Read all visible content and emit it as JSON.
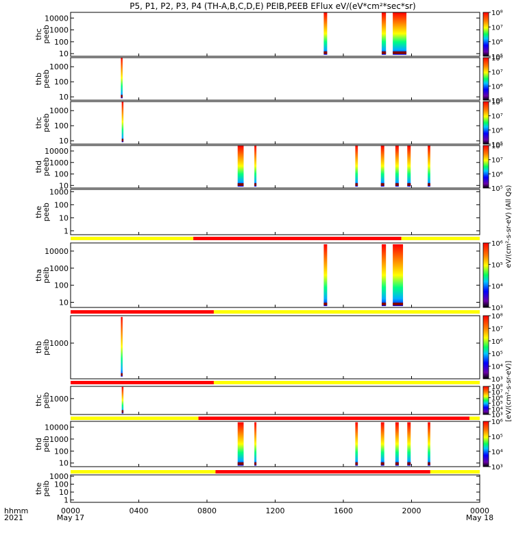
{
  "title": "P5, P1, P2, P3, P4 (TH-A,B,C,D,E) PEIB,PEEB EFlux eV/(eV*cm²*sec*sr)",
  "footer": {
    "time_label": "hhmm",
    "year_label": "2021",
    "x_ticks": [
      "0000",
      "0400",
      "0800",
      "1200",
      "1600",
      "2000",
      "0000"
    ],
    "x_tick_hours": [
      0,
      4,
      8,
      12,
      16,
      20,
      24
    ],
    "date_start": "May 17",
    "date_end": "May 18"
  },
  "colorbar_units": {
    "eeb": "eV/(cm²-s-sr-eV)  (All Qs)",
    "eib": "[eV/(cm²-s-sr-eV)]"
  },
  "quality_bar_colors": {
    "good": "#ffff00",
    "bad": "#ff0000"
  },
  "chart_data": [
    {
      "type": "heatmap",
      "probe": "thc",
      "product": "peeb",
      "ylabel": "thc\npeeb",
      "yscale": "log",
      "ylim": [
        6,
        30000
      ],
      "y_ticks": [
        [
          "10",
          10
        ],
        [
          "100",
          100
        ],
        [
          "1000",
          1000
        ],
        [
          "10000",
          10000
        ]
      ],
      "colorbar": {
        "labels": [
          "10⁵",
          "10⁶",
          "10⁷",
          "10⁸"
        ],
        "range": [
          4,
          8
        ]
      },
      "x_hours": [
        0,
        24
      ],
      "bursts": [
        {
          "start": 14.85,
          "end": 15.05,
          "ymin": 8,
          "ymax": 30000
        },
        {
          "start": 18.25,
          "end": 18.5,
          "ymin": 8,
          "ymax": 30000
        },
        {
          "start": 18.9,
          "end": 19.7,
          "ymin": 8,
          "ymax": 30000
        }
      ],
      "quality_bar": null
    },
    {
      "type": "heatmap",
      "probe": "thb",
      "product": "peeb",
      "ylabel": "thb\npeeb",
      "yscale": "log",
      "ylim": [
        6,
        4000
      ],
      "y_ticks": [
        [
          "10",
          10
        ],
        [
          "100",
          100
        ],
        [
          "1000",
          1000
        ]
      ],
      "colorbar": {
        "labels": [
          "10⁵",
          "10⁶",
          "10⁷",
          "10⁸"
        ],
        "range": [
          4,
          8
        ]
      },
      "bursts": [
        {
          "start": 2.95,
          "end": 3.05,
          "ymin": 8,
          "ymax": 4000
        }
      ],
      "quality_bar": null
    },
    {
      "type": "heatmap",
      "probe": "thc",
      "product": "peeb",
      "ylabel": "thc\npeeb",
      "yscale": "log",
      "ylim": [
        6,
        4000
      ],
      "y_ticks": [
        [
          "10",
          10
        ],
        [
          "100",
          100
        ],
        [
          "1000",
          1000
        ]
      ],
      "colorbar": {
        "labels": [
          "10⁵",
          "10⁶",
          "10⁷",
          "10⁸"
        ],
        "range": [
          4,
          8
        ]
      },
      "bursts": [
        {
          "start": 3.0,
          "end": 3.1,
          "ymin": 8,
          "ymax": 4000
        }
      ],
      "quality_bar": null
    },
    {
      "type": "heatmap",
      "probe": "thd",
      "product": "peeb",
      "ylabel": "thd\npeeb",
      "yscale": "log",
      "ylim": [
        6,
        30000
      ],
      "y_ticks": [
        [
          "10",
          10
        ],
        [
          "100",
          100
        ],
        [
          "1000",
          1000
        ],
        [
          "10000",
          10000
        ]
      ],
      "colorbar": {
        "labels": [
          "10⁵",
          "10⁶",
          "10⁷",
          "10⁸"
        ],
        "range": [
          4,
          8
        ]
      },
      "bursts": [
        {
          "start": 9.8,
          "end": 10.15,
          "ymin": 8,
          "ymax": 30000
        },
        {
          "start": 10.78,
          "end": 10.9,
          "ymin": 8,
          "ymax": 30000
        },
        {
          "start": 16.7,
          "end": 16.85,
          "ymin": 8,
          "ymax": 30000
        },
        {
          "start": 18.2,
          "end": 18.4,
          "ymin": 8,
          "ymax": 30000
        },
        {
          "start": 19.05,
          "end": 19.25,
          "ymin": 8,
          "ymax": 30000
        },
        {
          "start": 19.75,
          "end": 19.95,
          "ymin": 8,
          "ymax": 30000
        },
        {
          "start": 20.95,
          "end": 21.1,
          "ymin": 8,
          "ymax": 30000
        }
      ],
      "quality_bar": null
    },
    {
      "type": "heatmap",
      "probe": "the",
      "product": "peeb",
      "ylabel": "the\npeeb",
      "yscale": "log",
      "ylim": [
        0.5,
        1500
      ],
      "y_ticks": [
        [
          "1",
          1
        ],
        [
          "10",
          10
        ],
        [
          "100",
          100
        ],
        [
          "1000",
          1000
        ]
      ],
      "colorbar": null,
      "bursts": [],
      "quality_bar": null
    },
    {
      "type": "heatmap",
      "probe": "tha",
      "product": "peib",
      "ylabel": "tha\npeib",
      "yscale": "log",
      "ylim": [
        5,
        30000
      ],
      "y_ticks": [
        [
          "10",
          10
        ],
        [
          "100",
          100
        ],
        [
          "1000",
          1000
        ],
        [
          "10000",
          10000
        ]
      ],
      "colorbar": {
        "labels": [
          "10³",
          "10⁴",
          "10⁵",
          "10⁶"
        ],
        "range": [
          3,
          6
        ]
      },
      "bursts": [
        {
          "start": 14.85,
          "end": 15.05,
          "ymin": 6,
          "ymax": 25000
        },
        {
          "start": 18.25,
          "end": 18.5,
          "ymin": 6,
          "ymax": 25000
        },
        {
          "start": 18.9,
          "end": 19.5,
          "ymin": 6,
          "ymax": 25000
        }
      ],
      "quality_bar": {
        "segments": [
          [
            0,
            7.2,
            "good"
          ],
          [
            7.2,
            19.4,
            "bad"
          ],
          [
            19.4,
            24,
            "good"
          ]
        ]
      }
    },
    {
      "type": "heatmap",
      "probe": "thb",
      "product": "peib",
      "ylabel": "thb\npeib",
      "yscale": "log",
      "ylim": [
        50,
        10000
      ],
      "y_ticks": [
        [
          "1000",
          1000
        ]
      ],
      "colorbar": {
        "labels": [
          "10³",
          "10⁴",
          "10⁵",
          "10⁶",
          "10⁷",
          "10⁸"
        ],
        "range": [
          3,
          8
        ]
      },
      "bursts": [
        {
          "start": 2.95,
          "end": 3.05,
          "ymin": 60,
          "ymax": 9000
        }
      ],
      "quality_bar": {
        "segments": [
          [
            0,
            8.4,
            "bad"
          ],
          [
            8.4,
            24,
            "good"
          ]
        ]
      }
    },
    {
      "type": "heatmap",
      "probe": "thc",
      "product": "peib",
      "ylabel": "thc\npeib",
      "yscale": "log",
      "ylim": [
        50,
        10000
      ],
      "y_ticks": [
        [
          "1000",
          1000
        ]
      ],
      "colorbar": {
        "labels": [
          "10³",
          "10⁴",
          "10⁵",
          "10⁶",
          "10⁷",
          "10⁸"
        ],
        "range": [
          3,
          8
        ]
      },
      "bursts": [
        {
          "start": 3.0,
          "end": 3.1,
          "ymin": 60,
          "ymax": 9000
        }
      ],
      "quality_bar": {
        "segments": [
          [
            0,
            8.4,
            "bad"
          ],
          [
            8.4,
            24,
            "good"
          ]
        ]
      }
    },
    {
      "type": "heatmap",
      "probe": "thd",
      "product": "peib",
      "ylabel": "thd\npeib",
      "yscale": "log",
      "ylim": [
        5,
        30000
      ],
      "y_ticks": [
        [
          "10",
          10
        ],
        [
          "100",
          100
        ],
        [
          "1000",
          1000
        ],
        [
          "10000",
          10000
        ]
      ],
      "colorbar": {
        "labels": [
          "10³",
          "10⁴",
          "10⁵",
          "10⁶"
        ],
        "range": [
          3,
          6
        ]
      },
      "bursts": [
        {
          "start": 9.8,
          "end": 10.15,
          "ymin": 6,
          "ymax": 25000
        },
        {
          "start": 10.78,
          "end": 10.9,
          "ymin": 6,
          "ymax": 25000
        },
        {
          "start": 16.7,
          "end": 16.85,
          "ymin": 6,
          "ymax": 25000
        },
        {
          "start": 18.2,
          "end": 18.4,
          "ymin": 6,
          "ymax": 25000
        },
        {
          "start": 19.05,
          "end": 19.25,
          "ymin": 6,
          "ymax": 25000
        },
        {
          "start": 19.75,
          "end": 19.95,
          "ymin": 6,
          "ymax": 25000
        },
        {
          "start": 20.95,
          "end": 21.1,
          "ymin": 6,
          "ymax": 25000
        }
      ],
      "quality_bar": {
        "segments": [
          [
            0,
            7.5,
            "good"
          ],
          [
            7.5,
            23.4,
            "bad"
          ],
          [
            23.4,
            24,
            "good"
          ]
        ]
      }
    },
    {
      "type": "heatmap",
      "probe": "the",
      "product": "peib",
      "ylabel": "the\npeib",
      "yscale": "log",
      "ylim": [
        0.5,
        1500
      ],
      "y_ticks": [
        [
          "1",
          1
        ],
        [
          "10",
          10
        ],
        [
          "100",
          100
        ],
        [
          "1000",
          1000
        ]
      ],
      "colorbar": null,
      "bursts": [],
      "quality_bar": {
        "segments": [
          [
            0,
            8.5,
            "good"
          ],
          [
            8.5,
            21.1,
            "bad"
          ],
          [
            21.1,
            24,
            "good"
          ]
        ]
      }
    }
  ]
}
